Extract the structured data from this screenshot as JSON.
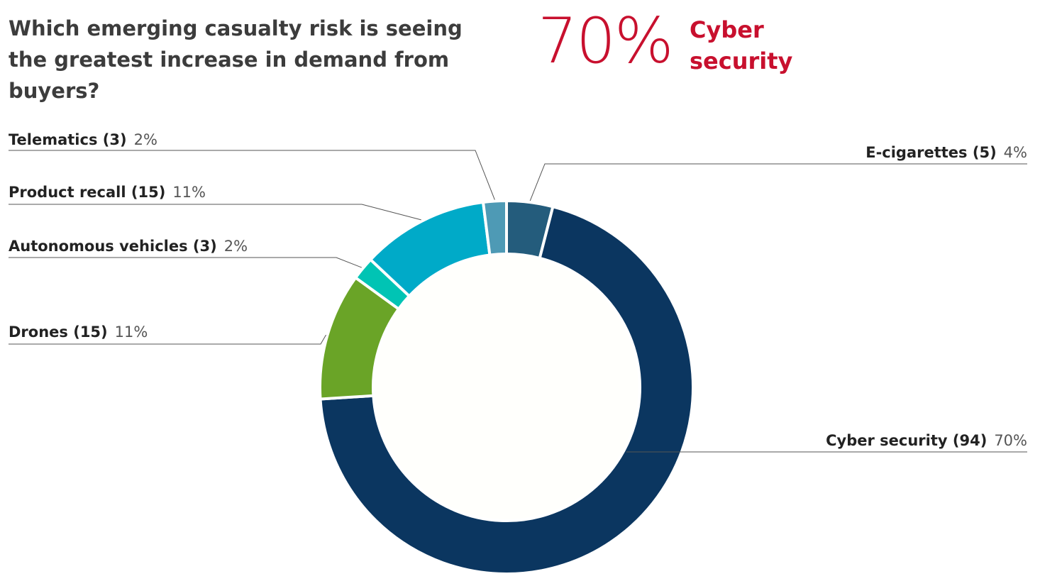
{
  "chart_data": {
    "type": "donut",
    "title": "Which emerging casualty risk is seeing the greatest increase in demand from buyers?",
    "annotation": {
      "text": "70%",
      "subtext": "Cyber security"
    },
    "categories": [
      "E-cigarettes (5)",
      "Cyber security (94)",
      "Drones (15)",
      "Autonomous vehicles (3)",
      "Product recall (15)",
      "Telematics (3)"
    ],
    "values": [
      4,
      70,
      11,
      2,
      11,
      2
    ],
    "value_labels": [
      "4%",
      "70%",
      "11%",
      "2%",
      "11%",
      "2%"
    ],
    "colors": [
      "#245c7c",
      "#0b3660",
      "#6aa427",
      "#00c4b4",
      "#00aac8",
      "#4e9ab5"
    ]
  }
}
